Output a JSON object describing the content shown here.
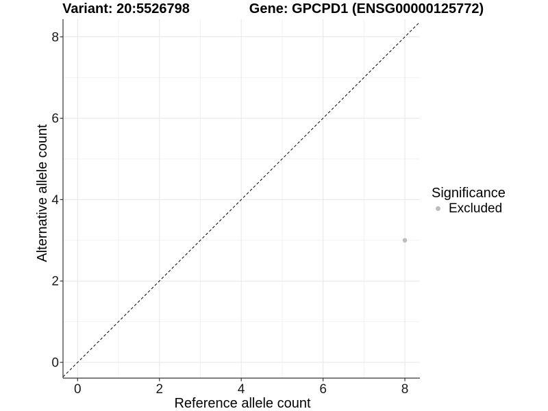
{
  "chart_data": {
    "type": "scatter",
    "title_left": "Variant: 20:5526798",
    "title_right": "Gene: GPCPD1 (ENSG00000125772)",
    "xlabel": "Reference allele count",
    "ylabel": "Alternative allele count",
    "x_ticks": [
      0,
      2,
      4,
      6,
      8
    ],
    "y_ticks": [
      0,
      2,
      4,
      6,
      8
    ],
    "xlim": [
      -0.36,
      8.37
    ],
    "ylim": [
      -0.39,
      8.43
    ],
    "grid": "major and minor gridlines, unit spacing",
    "legend": {
      "title": "Significance",
      "position": "right",
      "items": [
        {
          "label": "Excluded",
          "color": "#bdbdbd"
        }
      ]
    },
    "reference_line": {
      "kind": "identity y=x",
      "style": "dashed",
      "color": "#000000"
    },
    "series": [
      {
        "name": "Excluded",
        "color": "#bdbdbd",
        "points": [
          {
            "x": 8,
            "y": 3
          }
        ]
      }
    ],
    "colors": {
      "background": "#ffffff",
      "grid_major": "#e6e6e6",
      "grid_minor": "#f2f2f2",
      "axis_line": "#333333",
      "tick_text": "#1a1a1a",
      "point": "#bdbdbd"
    }
  }
}
